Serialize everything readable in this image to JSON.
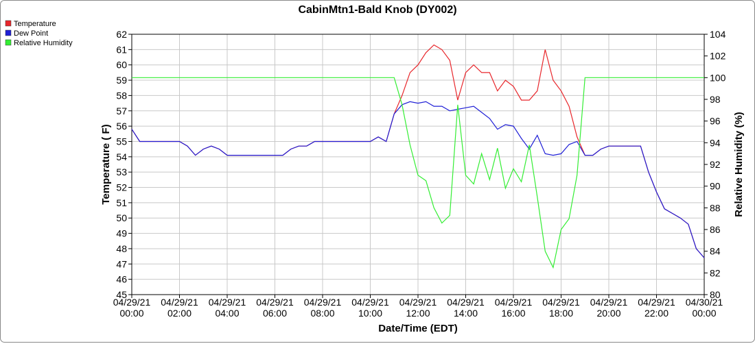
{
  "chart_data": {
    "type": "line",
    "title": "CabinMtn1-Bald Knob (DY002)",
    "x_label": "Date/Time (EDT)",
    "y_label": "Temperature ( F)",
    "y2_label": "Relative Humidity (%)",
    "x": [
      "04/29/21 00:00",
      "04/29/21 00:20",
      "04/29/21 00:40",
      "04/29/21 01:00",
      "04/29/21 01:20",
      "04/29/21 01:40",
      "04/29/21 02:00",
      "04/29/21 02:20",
      "04/29/21 02:40",
      "04/29/21 03:00",
      "04/29/21 03:20",
      "04/29/21 03:40",
      "04/29/21 04:00",
      "04/29/21 04:20",
      "04/29/21 04:40",
      "04/29/21 05:00",
      "04/29/21 05:20",
      "04/29/21 05:40",
      "04/29/21 06:00",
      "04/29/21 06:20",
      "04/29/21 06:40",
      "04/29/21 07:00",
      "04/29/21 07:20",
      "04/29/21 07:40",
      "04/29/21 08:00",
      "04/29/21 08:20",
      "04/29/21 08:40",
      "04/29/21 09:00",
      "04/29/21 09:20",
      "04/29/21 09:40",
      "04/29/21 10:00",
      "04/29/21 10:20",
      "04/29/21 10:40",
      "04/29/21 11:00",
      "04/29/21 11:20",
      "04/29/21 11:40",
      "04/29/21 12:00",
      "04/29/21 12:20",
      "04/29/21 12:40",
      "04/29/21 13:00",
      "04/29/21 13:20",
      "04/29/21 13:40",
      "04/29/21 14:00",
      "04/29/21 14:20",
      "04/29/21 14:40",
      "04/29/21 15:00",
      "04/29/21 15:20",
      "04/29/21 15:40",
      "04/29/21 16:00",
      "04/29/21 16:20",
      "04/29/21 16:40",
      "04/29/21 17:00",
      "04/29/21 17:20",
      "04/29/21 17:40",
      "04/29/21 18:00",
      "04/29/21 18:20",
      "04/29/21 18:40",
      "04/29/21 19:00",
      "04/29/21 19:20",
      "04/29/21 19:40",
      "04/29/21 20:00",
      "04/29/21 20:20",
      "04/29/21 20:40",
      "04/29/21 21:00",
      "04/29/21 21:20",
      "04/29/21 21:40",
      "04/29/21 22:00",
      "04/29/21 22:20",
      "04/29/21 22:40",
      "04/29/21 23:00",
      "04/29/21 23:20",
      "04/29/21 23:40",
      "04/30/21 00:00"
    ],
    "series": [
      {
        "name": "Temperature",
        "color": "#e8262b",
        "values": [
          55.8,
          55.0,
          55.0,
          55.0,
          55.0,
          55.0,
          55.0,
          54.7,
          54.1,
          54.5,
          54.7,
          54.5,
          54.1,
          54.1,
          54.1,
          54.1,
          54.1,
          54.1,
          54.1,
          54.1,
          54.5,
          54.7,
          54.7,
          55.0,
          55.0,
          55.0,
          55.0,
          55.0,
          55.0,
          55.0,
          55.0,
          55.3,
          55.0,
          56.8,
          58.0,
          59.5,
          60.0,
          60.8,
          61.3,
          61.0,
          60.3,
          57.7,
          59.5,
          60.0,
          59.5,
          59.5,
          58.3,
          59.0,
          58.6,
          57.7,
          57.7,
          58.3,
          61.0,
          59.0,
          58.3,
          57.3,
          55.3,
          54.1,
          54.1,
          54.5,
          54.7,
          54.7,
          54.7,
          54.7,
          54.7,
          53.0,
          51.7,
          50.6,
          50.3,
          50.0,
          49.6,
          48.0,
          47.4
        ]
      },
      {
        "name": "Dew Point",
        "color": "#1f1fd6",
        "values": [
          55.8,
          55.0,
          55.0,
          55.0,
          55.0,
          55.0,
          55.0,
          54.7,
          54.1,
          54.5,
          54.7,
          54.5,
          54.1,
          54.1,
          54.1,
          54.1,
          54.1,
          54.1,
          54.1,
          54.1,
          54.5,
          54.7,
          54.7,
          55.0,
          55.0,
          55.0,
          55.0,
          55.0,
          55.0,
          55.0,
          55.0,
          55.3,
          55.0,
          56.8,
          57.4,
          57.6,
          57.5,
          57.6,
          57.3,
          57.3,
          57.0,
          57.1,
          57.2,
          57.3,
          56.9,
          56.5,
          55.8,
          56.1,
          56.0,
          55.2,
          54.5,
          55.4,
          54.2,
          54.1,
          54.2,
          54.8,
          55.0,
          54.1,
          54.1,
          54.5,
          54.7,
          54.7,
          54.7,
          54.7,
          54.7,
          53.0,
          51.7,
          50.6,
          50.3,
          50.0,
          49.6,
          48.0,
          47.4
        ]
      },
      {
        "name": "Relative Humidity",
        "color": "#33ee33",
        "axis": "y2",
        "values": [
          100,
          100,
          100,
          100,
          100,
          100,
          100,
          100,
          100,
          100,
          100,
          100,
          100,
          100,
          100,
          100,
          100,
          100,
          100,
          100,
          100,
          100,
          100,
          100,
          100,
          100,
          100,
          100,
          100,
          100,
          100,
          100,
          100,
          100,
          97.5,
          93.8,
          91,
          90.5,
          88,
          86.6,
          87.3,
          97.5,
          91,
          90.2,
          93,
          90.6,
          93.5,
          89.8,
          91.6,
          90.4,
          93.8,
          89,
          84,
          82.5,
          86,
          87,
          91,
          100,
          100,
          100,
          100,
          100,
          100,
          100,
          100,
          100,
          100,
          100,
          100,
          100,
          100,
          100,
          100
        ]
      }
    ],
    "xlim": [
      "04/29/21 00:00",
      "04/30/21 00:00"
    ],
    "xticks": [
      {
        "value": "04/29/21 00:00",
        "label": [
          "04/29/21",
          "00:00"
        ]
      },
      {
        "value": "04/29/21 02:00",
        "label": [
          "04/29/21",
          "02:00"
        ]
      },
      {
        "value": "04/29/21 04:00",
        "label": [
          "04/29/21",
          "04:00"
        ]
      },
      {
        "value": "04/29/21 06:00",
        "label": [
          "04/29/21",
          "06:00"
        ]
      },
      {
        "value": "04/29/21 08:00",
        "label": [
          "04/29/21",
          "08:00"
        ]
      },
      {
        "value": "04/29/21 10:00",
        "label": [
          "04/29/21",
          "10:00"
        ]
      },
      {
        "value": "04/29/21 12:00",
        "label": [
          "04/29/21",
          "12:00"
        ]
      },
      {
        "value": "04/29/21 14:00",
        "label": [
          "04/29/21",
          "14:00"
        ]
      },
      {
        "value": "04/29/21 16:00",
        "label": [
          "04/29/21",
          "16:00"
        ]
      },
      {
        "value": "04/29/21 18:00",
        "label": [
          "04/29/21",
          "18:00"
        ]
      },
      {
        "value": "04/29/21 20:00",
        "label": [
          "04/29/21",
          "20:00"
        ]
      },
      {
        "value": "04/29/21 22:00",
        "label": [
          "04/29/21",
          "22:00"
        ]
      },
      {
        "value": "04/30/21 00:00",
        "label": [
          "04/30/21",
          "00:00"
        ]
      }
    ],
    "ylim": [
      45,
      62
    ],
    "yticks": [
      45,
      46,
      47,
      48,
      49,
      50,
      51,
      52,
      53,
      54,
      55,
      56,
      57,
      58,
      59,
      60,
      61,
      62
    ],
    "y2lim": [
      80,
      104
    ],
    "y2ticks": [
      80,
      82,
      84,
      86,
      88,
      90,
      92,
      94,
      96,
      98,
      100,
      102,
      104
    ],
    "grid": true,
    "legend": "top-left"
  }
}
